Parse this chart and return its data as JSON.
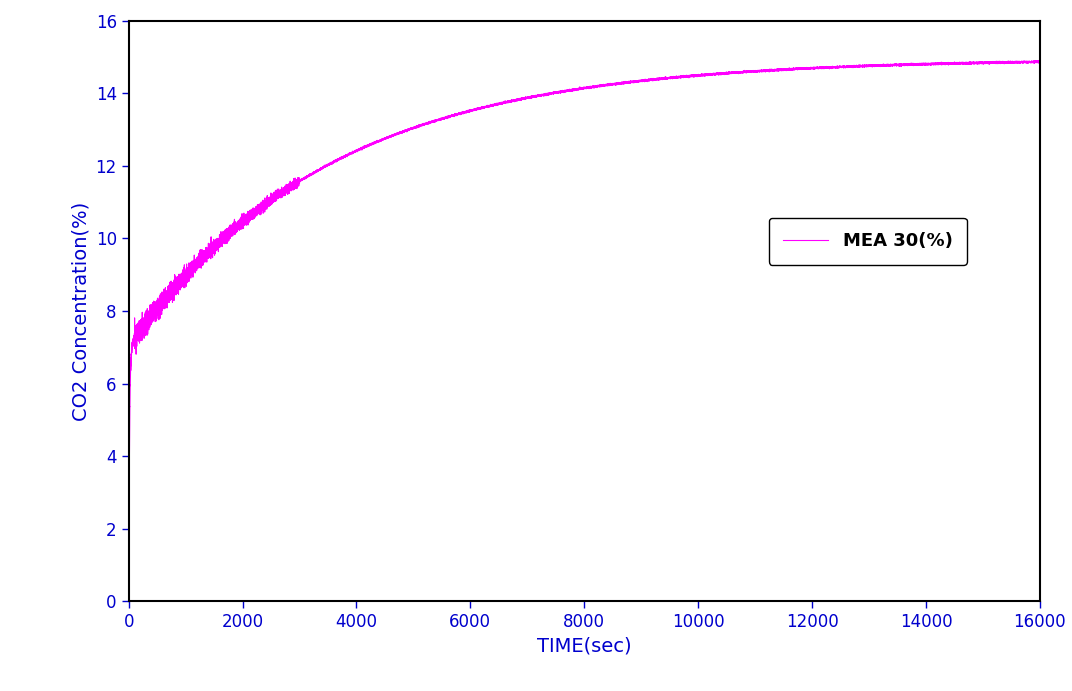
{
  "title": "",
  "xlabel": "TIME(sec)",
  "ylabel": "CO2 Concentration(%)",
  "line_color": "#FF00FF",
  "line_label": "MEA 30(%)",
  "xlim": [
    0,
    16000
  ],
  "ylim": [
    0,
    16
  ],
  "xticks": [
    0,
    2000,
    4000,
    6000,
    8000,
    10000,
    12000,
    14000,
    16000
  ],
  "yticks": [
    0,
    2,
    4,
    6,
    8,
    10,
    12,
    14,
    16
  ],
  "background_color": "#ffffff",
  "line_width": 0.8,
  "legend_fontsize": 13,
  "axis_fontsize": 14,
  "tick_fontsize": 12,
  "saturation_value": 14.95,
  "label_color": "#0000CD",
  "tick_color": "#0000CD"
}
